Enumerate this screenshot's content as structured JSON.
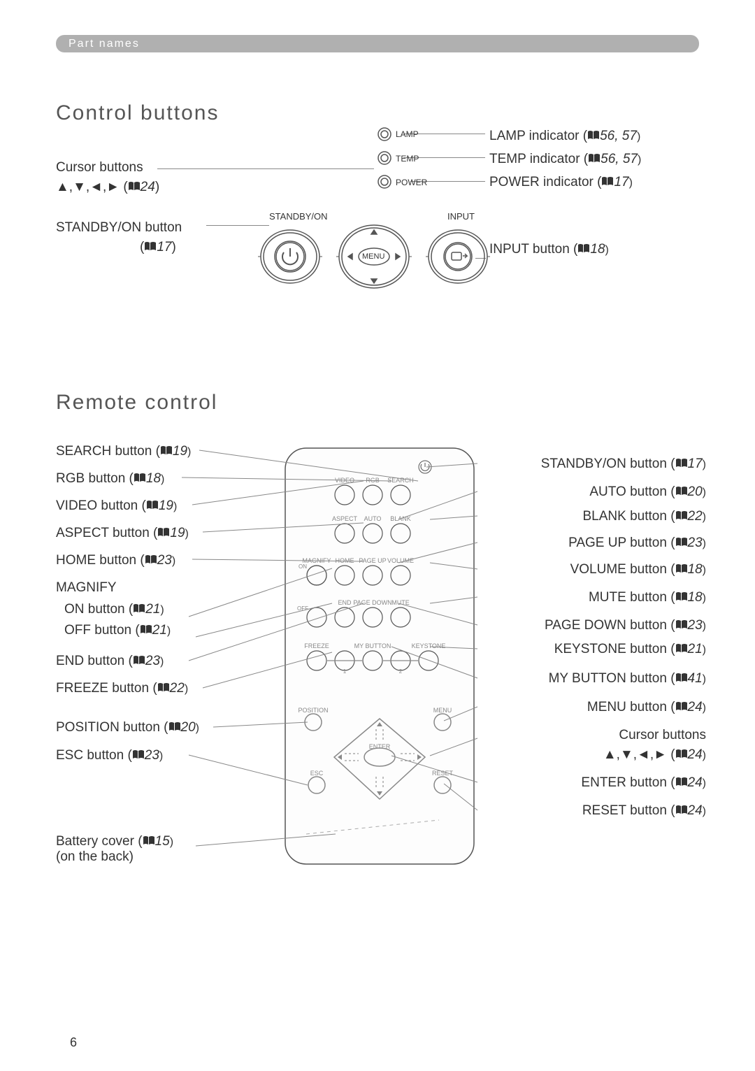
{
  "colors": {
    "tag_bg": "#b0b0b0",
    "tag_text": "#ffffff",
    "text": "#333333",
    "heading": "#555555",
    "line": "#888888",
    "svg_stroke": "#555555",
    "svg_fill_light": "#f0f0f0",
    "svg_fill_gray": "#d8d8d8"
  },
  "tag": "Part names",
  "page_number": "6",
  "section1": {
    "heading": "Control buttons",
    "left": {
      "cursor": "Cursor buttons",
      "cursor_sub": "▲,▼,◄,► (",
      "cursor_ref": "24",
      "standby": "STANDBY/ON button",
      "standby_sub": "(",
      "standby_ref": "17"
    },
    "right": {
      "lamp": "LAMP indicator (",
      "lamp_ref": "56, 57",
      "temp": "TEMP indicator (",
      "temp_ref": "56, 57",
      "power": "POWER indicator (",
      "power_ref": "17",
      "input": "INPUT button (",
      "input_ref": "18"
    },
    "diagram": {
      "lamp": "LAMP",
      "temp": "TEMP",
      "power": "POWER",
      "standby": "STANDBY/ON",
      "input": "INPUT",
      "menu": "MENU"
    }
  },
  "section2": {
    "heading": "Remote control",
    "left": [
      {
        "label": "SEARCH button (",
        "ref": "19"
      },
      {
        "label": "RGB button (",
        "ref": "18"
      },
      {
        "label": "VIDEO button (",
        "ref": "19"
      },
      {
        "label": "ASPECT button (",
        "ref": "19"
      },
      {
        "label": "HOME button (",
        "ref": "23"
      },
      {
        "label": "MAGNIFY",
        "ref": ""
      },
      {
        "label": "ON button (",
        "ref": "21",
        "indent": true
      },
      {
        "label": "OFF button (",
        "ref": "21",
        "indent": true
      },
      {
        "label": "END button (",
        "ref": "23"
      },
      {
        "label": "FREEZE button (",
        "ref": "22"
      },
      {
        "label": "POSITION button (",
        "ref": "20"
      },
      {
        "label": "ESC button (",
        "ref": "23"
      }
    ],
    "battery": "Battery cover (",
    "battery_ref": "15",
    "battery_sub": "(on the back)",
    "right": [
      {
        "label": "STANDBY/ON button (",
        "ref": "17"
      },
      {
        "label": "AUTO button (",
        "ref": "20"
      },
      {
        "label": "BLANK button (",
        "ref": "22"
      },
      {
        "label": "PAGE UP button (",
        "ref": "23"
      },
      {
        "label": "VOLUME button (",
        "ref": "18"
      },
      {
        "label": "MUTE button (",
        "ref": "18"
      },
      {
        "label": "PAGE DOWN button (",
        "ref": "23"
      },
      {
        "label": "KEYSTONE button (",
        "ref": "21"
      },
      {
        "label": "MY BUTTON button (",
        "ref": "41"
      },
      {
        "label": "MENU button (",
        "ref": "24"
      },
      {
        "label": "Cursor buttons",
        "ref": ""
      },
      {
        "label": "▲,▼,◄,► (",
        "ref": "24",
        "align_right": true
      },
      {
        "label": "ENTER button (",
        "ref": "24"
      },
      {
        "label": "RESET button (",
        "ref": "24"
      }
    ],
    "remote_labels": {
      "video": "VIDEO",
      "rgb": "RGB",
      "search": "SEARCH",
      "aspect": "ASPECT",
      "auto": "AUTO",
      "blank": "BLANK",
      "magnify": "MAGNIFY",
      "home": "HOME",
      "pageup": "PAGE UP",
      "volume": "VOLUME",
      "on": "ON",
      "off": "OFF",
      "end": "END",
      "pagedown": "PAGE DOWN",
      "mute": "MUTE",
      "freeze": "FREEZE",
      "mybutton": "MY BUTTON",
      "keystone": "KEYSTONE",
      "position": "POSITION",
      "menu": "MENU",
      "enter": "ENTER",
      "esc": "ESC",
      "reset": "RESET",
      "n1": "1",
      "n2": "2"
    }
  }
}
